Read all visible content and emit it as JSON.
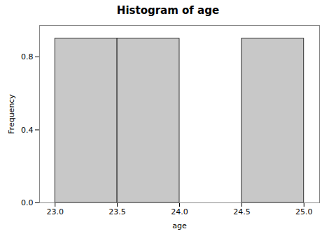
{
  "chart_data": {
    "type": "histogram",
    "title": "Histogram of age",
    "xlabel": "age",
    "ylabel": "Frequency",
    "bins": [
      23.0,
      23.5,
      24.0,
      24.5,
      25.0
    ],
    "values": [
      0.9,
      0.9,
      0,
      0.9
    ],
    "color": "#c8c8c8",
    "xlim": [
      22.875,
      25.125
    ],
    "xticks": [
      {
        "value": 23.0,
        "label": "23.0"
      },
      23.5,
      {
        "value": 24.0,
        "label": "24.0"
      },
      24.5,
      {
        "value": 25.0,
        "label": "25.0"
      }
    ],
    "ylim": [
      0.0,
      0.972
    ],
    "yticks": [
      {
        "value": 0.0,
        "label": "0.0"
      },
      0.4,
      0.8
    ]
  }
}
